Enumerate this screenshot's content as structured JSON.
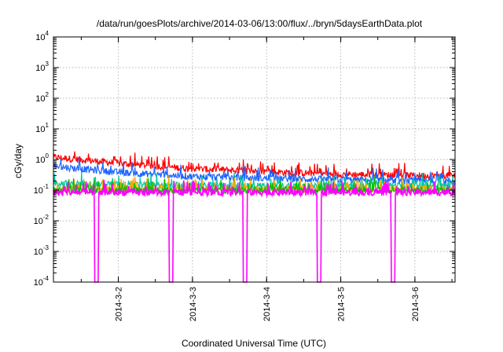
{
  "chart_data": {
    "type": "line",
    "title": "/data/run/goesPlots/archive/2014-03-06/13:00/flux/../bryn/5daysEarthData.plot",
    "xlabel": "Coordinated Universal Time (UTC)",
    "ylabel": "cGy/day",
    "yscale": "log",
    "ylim": [
      0.0001,
      10000
    ],
    "xlim": [
      "2014-03-01 03:00",
      "2014-03-06 13:00"
    ],
    "grid": true,
    "y_ticks": [
      {
        "value": 0.0001,
        "mantissa": "10",
        "exp": "-4"
      },
      {
        "value": 0.001,
        "mantissa": "10",
        "exp": "-3"
      },
      {
        "value": 0.01,
        "mantissa": "10",
        "exp": "-2"
      },
      {
        "value": 0.1,
        "mantissa": "10",
        "exp": "-1"
      },
      {
        "value": 1,
        "mantissa": "10",
        "exp": "0"
      },
      {
        "value": 10,
        "mantissa": "10",
        "exp": "1"
      },
      {
        "value": 100,
        "mantissa": "10",
        "exp": "2"
      },
      {
        "value": 1000,
        "mantissa": "10",
        "exp": "3"
      },
      {
        "value": 10000,
        "mantissa": "10",
        "exp": "4"
      }
    ],
    "x_ticks": [
      {
        "value": "2014-03-02",
        "label": "2014-3-2"
      },
      {
        "value": "2014-03-03",
        "label": "2014-3-3"
      },
      {
        "value": "2014-03-04",
        "label": "2014-3-4"
      },
      {
        "value": "2014-03-05",
        "label": "2014-3-5"
      },
      {
        "value": "2014-03-06",
        "label": "2014-3-6"
      }
    ],
    "series": [
      {
        "color": "#ff0000",
        "x": [
          "2014-03-01 03:00",
          "2014-03-02 00:00",
          "2014-03-03 00:00",
          "2014-03-04 00:00",
          "2014-03-05 00:00",
          "2014-03-06 00:00",
          "2014-03-06 13:00"
        ],
        "y": [
          1.2,
          0.75,
          0.5,
          0.4,
          0.33,
          0.3,
          0.3
        ]
      },
      {
        "color": "#1e64ff",
        "x": [
          "2014-03-01 03:00",
          "2014-03-02 00:00",
          "2014-03-03 00:00",
          "2014-03-04 00:00",
          "2014-03-05 00:00",
          "2014-03-06 00:00",
          "2014-03-06 13:00"
        ],
        "y": [
          0.6,
          0.38,
          0.28,
          0.24,
          0.22,
          0.2,
          0.2
        ]
      },
      {
        "color": "#00c8a0",
        "x": [
          "2014-03-01 03:00",
          "2014-03-02 00:00",
          "2014-03-03 00:00",
          "2014-03-04 00:00",
          "2014-03-05 00:00",
          "2014-03-06 00:00",
          "2014-03-06 13:00"
        ],
        "y": [
          0.17,
          0.15,
          0.14,
          0.14,
          0.14,
          0.14,
          0.14
        ]
      },
      {
        "color": "#ffa500",
        "x": [
          "2014-03-01 03:00",
          "2014-03-06 13:00"
        ],
        "y": [
          0.11,
          0.11
        ]
      },
      {
        "color": "#00c000",
        "x": [
          "2014-03-01 03:00",
          "2014-03-06 13:00"
        ],
        "y": [
          0.1,
          0.1
        ]
      },
      {
        "color": "#ff00ff",
        "x": [
          "2014-03-01 03:00",
          "2014-03-06 13:00"
        ],
        "y": [
          0.085,
          0.085
        ],
        "dropouts": [
          "2014-03-01 17:00",
          "2014-03-02 17:00",
          "2014-03-03 17:00",
          "2014-03-04 17:00",
          "2014-03-05 17:00"
        ]
      }
    ]
  }
}
